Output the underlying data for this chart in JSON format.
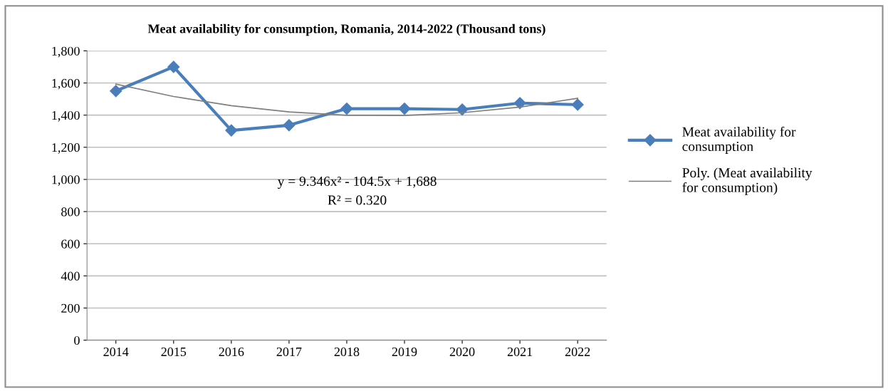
{
  "chart_data": {
    "type": "line",
    "title": "Meat availability for consumption, Romania, 2014-2022 (Thousand tons)",
    "categories": [
      "2014",
      "2015",
      "2016",
      "2017",
      "2018",
      "2019",
      "2020",
      "2021",
      "2022"
    ],
    "series": [
      {
        "name": "Meat availability for consumption",
        "color": "#4a7ebb",
        "marker": "diamond",
        "values": [
          1550,
          1700,
          1305,
          1337,
          1440,
          1440,
          1435,
          1475,
          1465
        ]
      },
      {
        "name": "Poly. (Meat availability for consumption)",
        "color": "#7f7f7f",
        "marker": "none",
        "values": [
          1593,
          1516,
          1459,
          1420,
          1399,
          1398,
          1415,
          1450,
          1505
        ]
      }
    ],
    "ylim": [
      0,
      1800
    ],
    "yticks": [
      0,
      200,
      400,
      600,
      800,
      {
        "value": 1000,
        "label": "1,000"
      },
      {
        "value": 1200,
        "label": "1,200"
      },
      {
        "value": 1400,
        "label": "1,400"
      },
      {
        "value": 1600,
        "label": "1,600"
      },
      {
        "value": 1800,
        "label": "1,800"
      }
    ],
    "grid": "y",
    "legend": "right",
    "annotations": [
      "y = 9.346x² - 104.5x + 1,688",
      "R² = 0.320"
    ]
  }
}
